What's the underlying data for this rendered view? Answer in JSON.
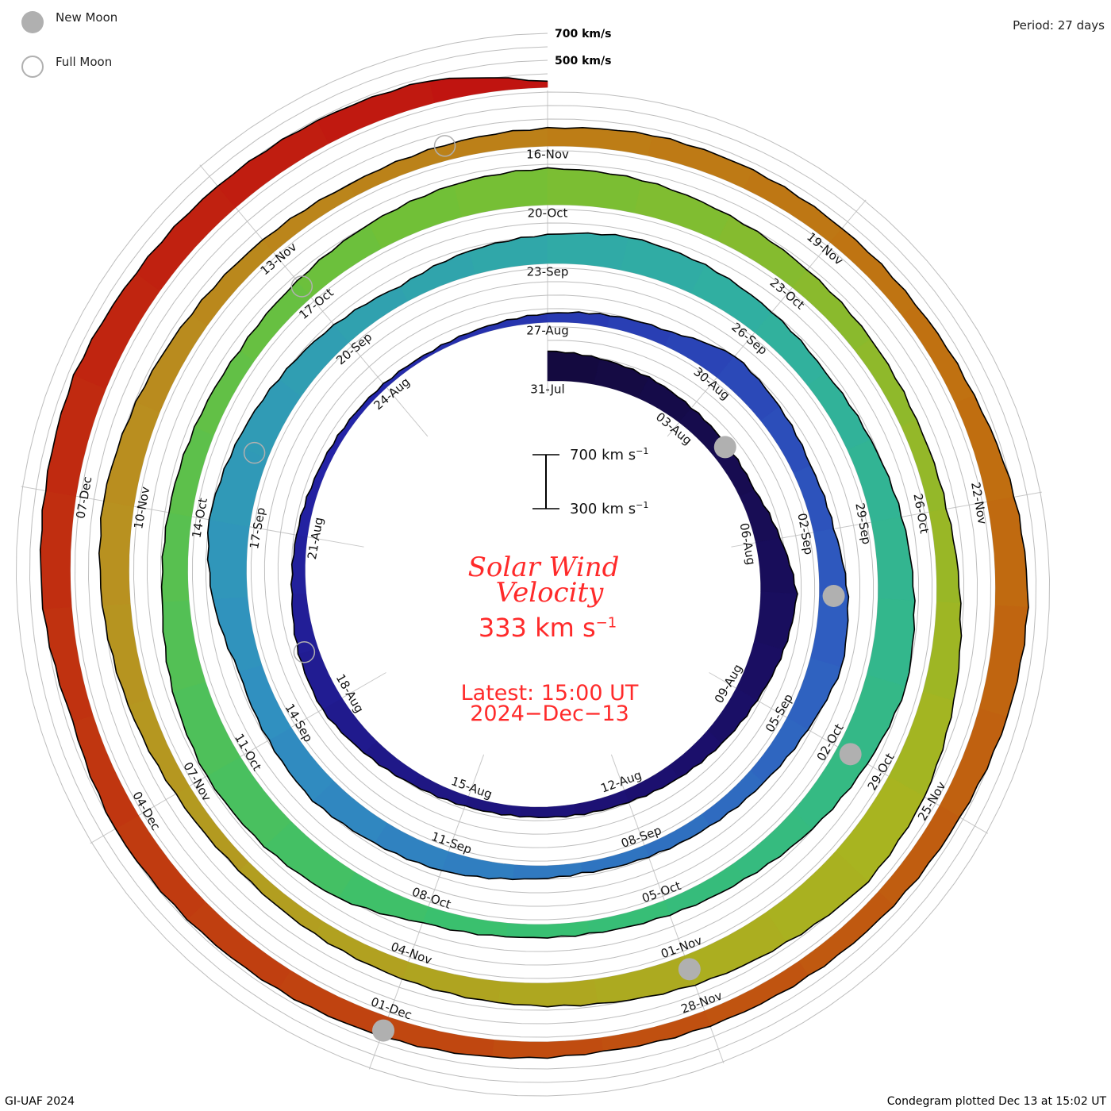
{
  "legend": {
    "new_moon": "New Moon",
    "full_moon": "Full Moon"
  },
  "period": "Period: 27 days",
  "grid_labels": {
    "v700": "700 km/s",
    "v500": "500 km/s"
  },
  "scale_bar": {
    "top_value": "700 km s",
    "bottom_value": "300 km s",
    "exp": "−1"
  },
  "center": {
    "title_line1": "Solar Wind",
    "title_line2": "Velocity",
    "current_value": "333 km s",
    "current_exp": "−1",
    "latest_line1": "Latest: 15:00 UT",
    "latest_line2": "2024−Dec−13"
  },
  "footer": {
    "left": "GI-UAF 2024",
    "right": "Condegram plotted Dec 13 at 15:02 UT"
  },
  "colors": {
    "text_red": "#ff2a2a",
    "grid": "#bdbdbd",
    "new_moon": "#b0b0b0",
    "palette": [
      "#140a40",
      "#1c1070",
      "#2424a8",
      "#2f5cc0",
      "#3090c0",
      "#30b0a0",
      "#38c070",
      "#70c038",
      "#a8b420",
      "#b89020",
      "#c07010",
      "#c04010",
      "#c01010"
    ]
  },
  "chart_data": {
    "type": "spiral-condegram",
    "title": "Solar Wind Velocity",
    "unit": "km/s",
    "period_days": 27,
    "start_date": "31-Jul",
    "end_date": "13-Dec",
    "scale_range": [
      300,
      700
    ],
    "date_labels": [
      "31-Jul",
      "03-Aug",
      "06-Aug",
      "09-Aug",
      "12-Aug",
      "15-Aug",
      "18-Aug",
      "21-Aug",
      "24-Aug",
      "27-Aug",
      "30-Aug",
      "02-Sep",
      "05-Sep",
      "08-Sep",
      "11-Sep",
      "14-Sep",
      "17-Sep",
      "20-Sep",
      "23-Sep",
      "26-Sep",
      "29-Sep",
      "02-Oct",
      "05-Oct",
      "08-Oct",
      "11-Oct",
      "14-Oct",
      "17-Oct",
      "20-Oct",
      "23-Oct",
      "26-Oct",
      "29-Oct",
      "01-Nov",
      "04-Nov",
      "07-Nov",
      "10-Nov",
      "13-Nov",
      "16-Nov",
      "19-Nov",
      "22-Nov",
      "25-Nov",
      "28-Nov",
      "01-Dec",
      "04-Dec",
      "07-Dec"
    ],
    "daily_speed": [
      520,
      500,
      480,
      450,
      430,
      420,
      480,
      560,
      520,
      470,
      440,
      420,
      400,
      390,
      380,
      380,
      390,
      420,
      460,
      440,
      400,
      380,
      360,
      350,
      340,
      330,
      340,
      360,
      380,
      400,
      500,
      470,
      440,
      460,
      520,
      550,
      480,
      430,
      400,
      380,
      370,
      400,
      450,
      480,
      520,
      500,
      480,
      560,
      600,
      550,
      500,
      460,
      420,
      480,
      520,
      560,
      540,
      500,
      460,
      480,
      520,
      560,
      600,
      550,
      500,
      450,
      420,
      400,
      400,
      420,
      520,
      560,
      580,
      550,
      500,
      480,
      460,
      440,
      460,
      500,
      540,
      560,
      540,
      500,
      470,
      450,
      430,
      440,
      480,
      540,
      600,
      620,
      560,
      520,
      480,
      460,
      440,
      420,
      400,
      420,
      460,
      500,
      520,
      480,
      440,
      420,
      400,
      420,
      440,
      460,
      450,
      430,
      420,
      440,
      500,
      540,
      520,
      480,
      460,
      440,
      420,
      400,
      420,
      440,
      460,
      480,
      500,
      460,
      520,
      540,
      560,
      520,
      500,
      480,
      460,
      333
    ],
    "new_moon_day_offsets": [
      4,
      34,
      63,
      93,
      123
    ],
    "full_moon_day_offsets": [
      19,
      49,
      78,
      107
    ],
    "latest_value": 333
  }
}
